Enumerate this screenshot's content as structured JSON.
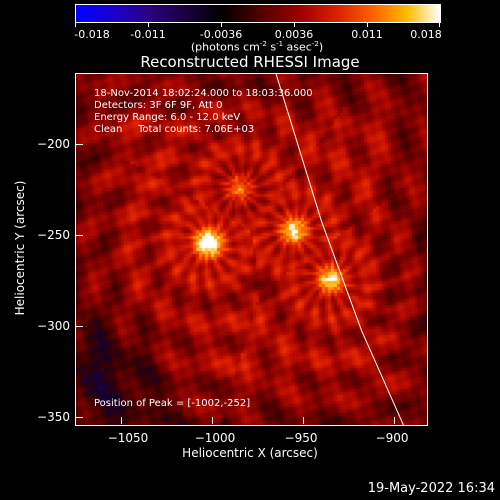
{
  "colorbar": {
    "ticks": [
      "-0.018",
      "-0.011",
      "-0.0036",
      "0.0036",
      "0.011",
      "0.018"
    ],
    "units_base": "(photons cm",
    "units_exp1": "-2",
    "units_mid1": " s",
    "units_exp2": "-1",
    "units_mid2": " asec",
    "units_exp3": "-2",
    "units_end": ")"
  },
  "title": "Reconstructed RHESSI Image",
  "info": {
    "time_range": "18-Nov-2014 18:02:24.000 to 18:03:36.000",
    "detectors": "Detectors: 3F 6F 9F, Att 0",
    "energy": "Energy Range: 6.0 - 12.0 keV",
    "clean": "Clean",
    "counts": "Total counts: 7.06E+03",
    "peak": "Position of Peak = [-1002,-252]"
  },
  "chart_data": {
    "type": "heatmap",
    "title": "Reconstructed RHESSI Image",
    "xlabel": "Heliocentric X (arcsec)",
    "ylabel": "Heliocentric Y (arcsec)",
    "xlim": [
      -1075,
      -882
    ],
    "ylim": [
      -352,
      -159
    ],
    "x_ticks": [
      -1050,
      -1000,
      -950,
      -900
    ],
    "y_ticks": [
      -350,
      -300,
      -250,
      -200
    ],
    "x_tick_labels": [
      "−1050",
      "−1000",
      "−950",
      "−900"
    ],
    "y_tick_labels": [
      "−350",
      "−300",
      "−250",
      "−200"
    ],
    "peak": [
      -1002,
      -252
    ],
    "sources": [
      {
        "x": -1002,
        "y": -252,
        "intensity": 1.0
      },
      {
        "x": -955,
        "y": -245,
        "intensity": 0.75
      },
      {
        "x": -935,
        "y": -272,
        "intensity": 0.72
      },
      {
        "x": -985,
        "y": -222,
        "intensity": 0.4
      }
    ],
    "colorbar_range": [
      -0.018,
      0.018
    ],
    "limb_line": [
      [
        -965,
        -159
      ],
      [
        -940,
        -240
      ],
      [
        -918,
        -300
      ],
      [
        -895,
        -352
      ]
    ]
  },
  "timestamp": "19-May-2022 16:34"
}
